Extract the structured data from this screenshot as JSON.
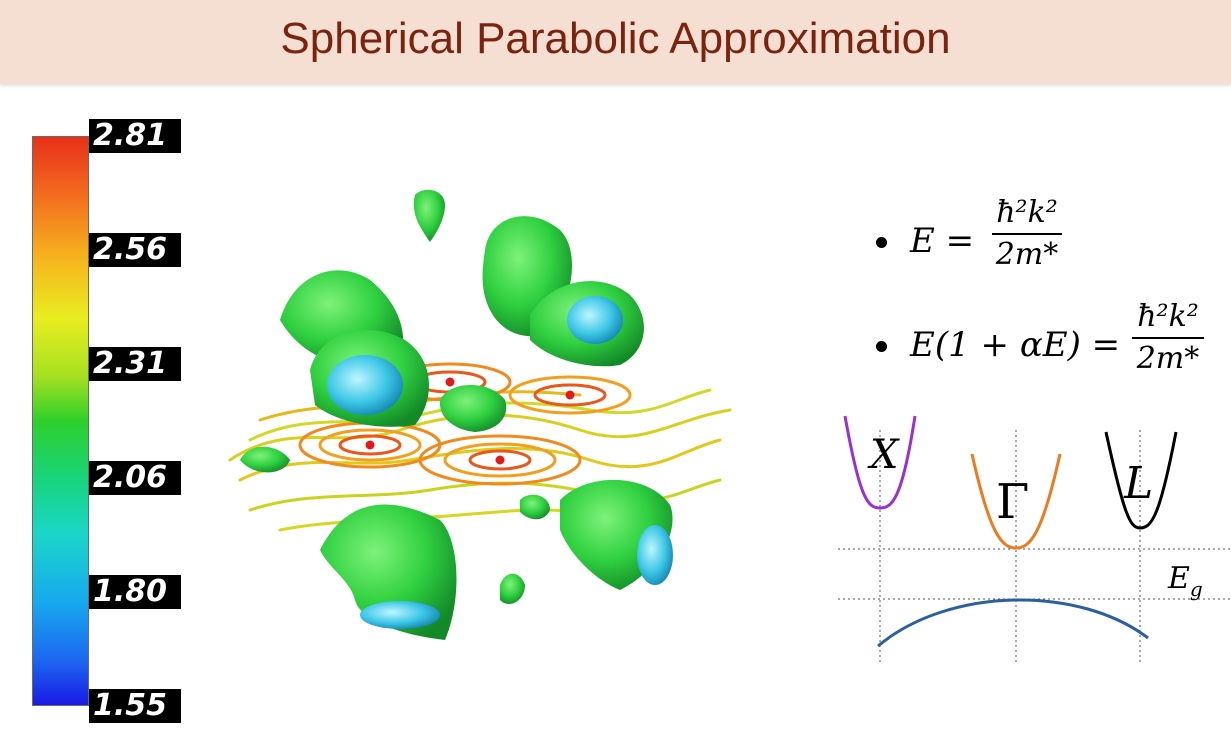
{
  "slide": {
    "title": "Spherical Parabolic Approximation"
  },
  "colorbar": {
    "ticks": [
      "2.81",
      "2.56",
      "2.31",
      "2.06",
      "1.80",
      "1.55"
    ],
    "max": 2.81,
    "min": 1.55
  },
  "equations": [
    {
      "lhs": "E =",
      "numerator": "ħ²k²",
      "denominator": "2m*"
    },
    {
      "lhs": "E(1 + αE) =",
      "numerator": "ħ²k²",
      "denominator": "2m*"
    }
  ],
  "band_diagram": {
    "valleys": [
      {
        "label": "X",
        "color": "#9b2fd6"
      },
      {
        "label": "Γ",
        "color": "#ee7a1e"
      },
      {
        "label": "L",
        "color": "#000000"
      }
    ],
    "gap_label_main": "E",
    "gap_label_sub": "g",
    "valence_color": "#2c5f9e"
  }
}
